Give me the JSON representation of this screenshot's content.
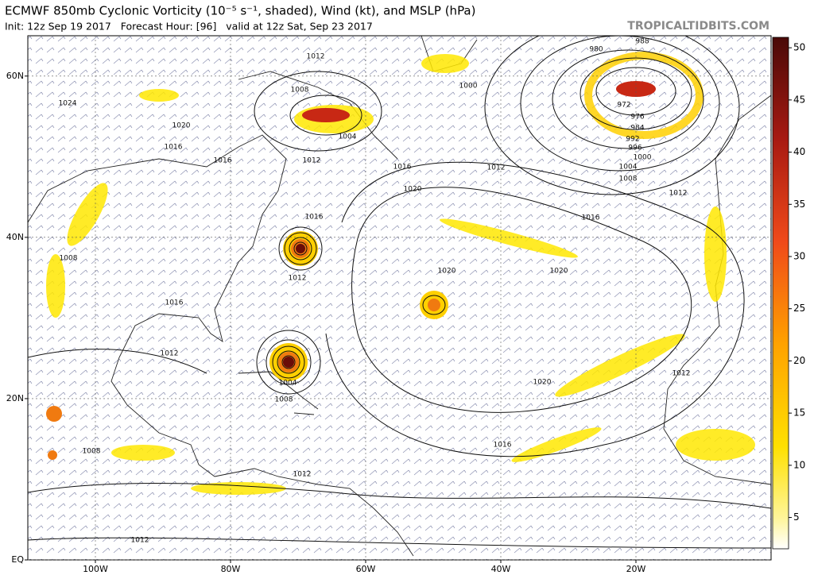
{
  "header": {
    "title": "ECMWF 850mb Cyclonic Vorticity (10⁻⁵ s⁻¹, shaded), Wind (kt), and MSLP (hPa)",
    "subtitle": "Init: 12z Sep 19 2017   Forecast Hour: [96]   valid at 12z Sat, Sep 23 2017",
    "watermark": "TROPICALTIDBITS.COM"
  },
  "map": {
    "lonlim": [
      -110,
      0
    ],
    "latlim": [
      0,
      65
    ],
    "lat_ticks": [
      {
        "value": 60,
        "label": "60N"
      },
      {
        "value": 40,
        "label": "40N"
      },
      {
        "value": 20,
        "label": "20N"
      },
      {
        "value": 0,
        "label": "EQ"
      }
    ],
    "lon_ticks": [
      {
        "value": -100,
        "label": "100W"
      },
      {
        "value": -80,
        "label": "80W"
      },
      {
        "value": -60,
        "label": "60W"
      },
      {
        "value": -40,
        "label": "40W"
      },
      {
        "value": -20,
        "label": "20W"
      }
    ],
    "isobar_labels": [
      "1024",
      "1020",
      "1016",
      "1016",
      "1012",
      "1008",
      "1004",
      "1012",
      "1016",
      "1020",
      "1016",
      "1012",
      "1008",
      "1016",
      "1012",
      "1004",
      "1008",
      "1008",
      "1012",
      "1012",
      "1020",
      "1020",
      "1020",
      "1016",
      "1016",
      "1012",
      "1012",
      "1012",
      "1000",
      "1004",
      "1008",
      "1000",
      "996",
      "992",
      "984",
      "976",
      "972",
      "980",
      "988"
    ]
  },
  "colorbar": {
    "lim": [
      2,
      51
    ],
    "ticks": [
      5,
      10,
      15,
      20,
      25,
      30,
      35,
      40,
      45,
      50
    ]
  }
}
